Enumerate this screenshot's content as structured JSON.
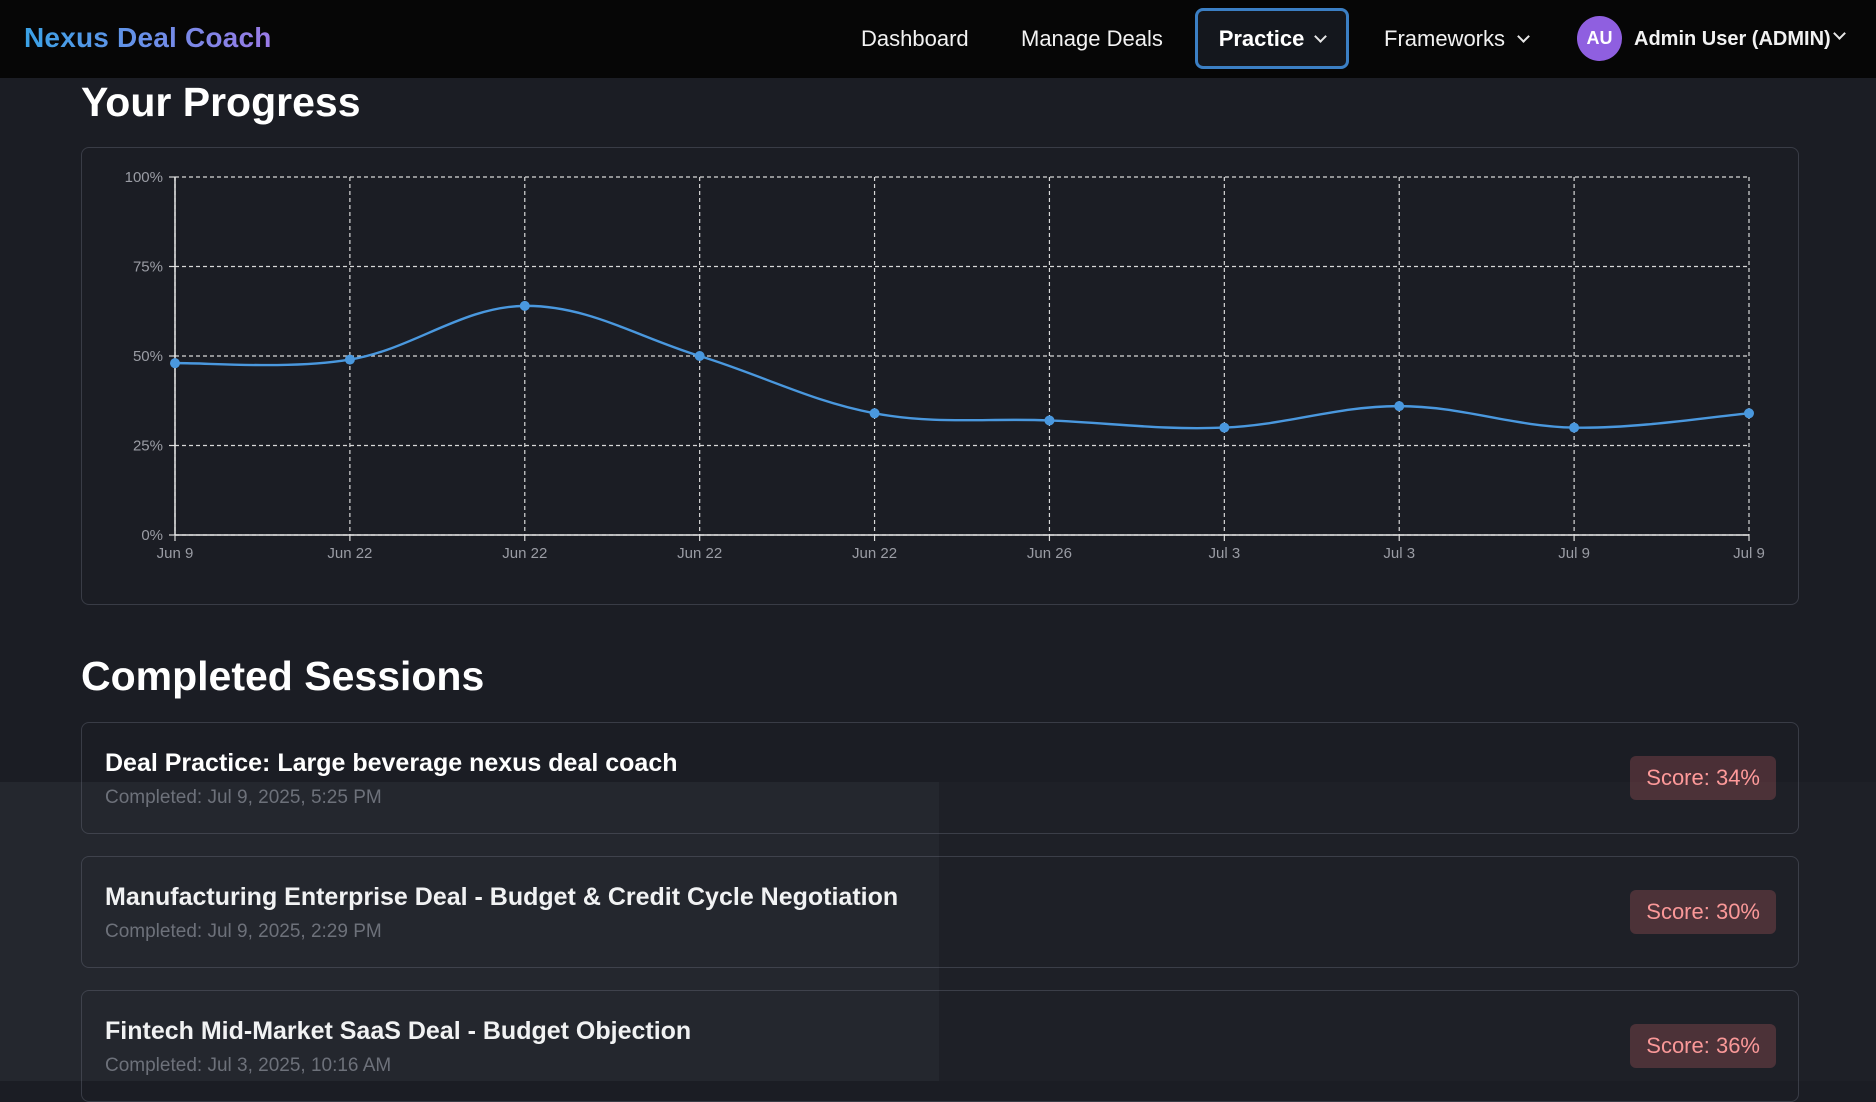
{
  "app": {
    "brand": "Nexus Deal Coach"
  },
  "nav": {
    "dashboard": "Dashboard",
    "manage_deals": "Manage Deals",
    "practice": "Practice",
    "frameworks": "Frameworks",
    "user_initials": "AU",
    "user_name": "Admin User (ADMIN)"
  },
  "progress": {
    "title": "Your Progress"
  },
  "chart_data": {
    "type": "line",
    "title": "",
    "xlabel": "",
    "ylabel": "",
    "x": [
      "Jun 9",
      "Jun 22",
      "Jun 22",
      "Jun 22",
      "Jun 22",
      "Jun 26",
      "Jul 3",
      "Jul 3",
      "Jul 9",
      "Jul 9"
    ],
    "series": [
      {
        "values": [
          48,
          49,
          64,
          50,
          34,
          32,
          30,
          36,
          30,
          34
        ]
      }
    ],
    "ylim": [
      0,
      100
    ],
    "yticks": [
      "0%",
      "25%",
      "50%",
      "75%",
      "100%"
    ],
    "grid": true,
    "line_color": "#4a98de"
  },
  "sessions": {
    "title": "Completed Sessions",
    "items": [
      {
        "title": "Deal Practice: Large beverage nexus deal coach",
        "date": "Completed: Jul 9, 2025, 5:25 PM",
        "score": "Score: 34%"
      },
      {
        "title": "Manufacturing Enterprise Deal - Budget & Credit Cycle Negotiation",
        "date": "Completed: Jul 9, 2025, 2:29 PM",
        "score": "Score: 30%"
      },
      {
        "title": "Fintech Mid-Market SaaS Deal - Budget Objection",
        "date": "Completed: Jul 3, 2025, 10:16 AM",
        "score": "Score: 36%"
      }
    ]
  }
}
